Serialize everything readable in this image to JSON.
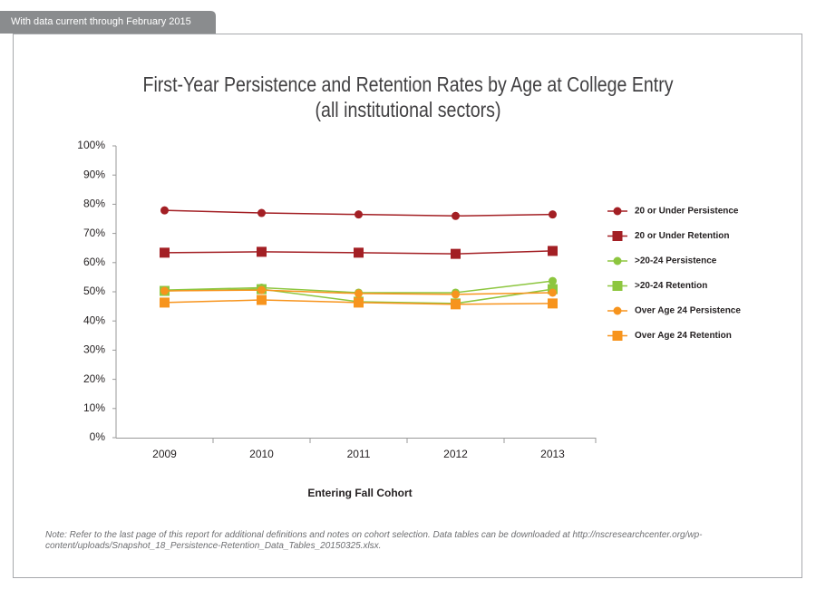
{
  "header": {
    "tab": "With data current through February 2015"
  },
  "chart_data": {
    "type": "line",
    "title": "First-Year Persistence and Retention Rates by Age at College Entry",
    "subtitle": "(all institutional sectors)",
    "x_label": "Entering Fall Cohort",
    "categories": [
      "2009",
      "2010",
      "2011",
      "2012",
      "2013"
    ],
    "series": [
      {
        "name": "20 or Under Persistence",
        "color": "#a31f24",
        "marker": "circle",
        "values": [
          77.9,
          77.0,
          76.5,
          76.0,
          76.5
        ]
      },
      {
        "name": "20 or Under Retention",
        "color": "#a31f24",
        "marker": "square",
        "values": [
          63.4,
          63.7,
          63.4,
          63.0,
          64.0
        ]
      },
      {
        "name": ">20-24 Persistence",
        "color": "#8dc63f",
        "marker": "circle",
        "values": [
          50.6,
          51.4,
          49.7,
          49.7,
          53.7
        ]
      },
      {
        "name": ">20-24 Retention",
        "color": "#8dc63f",
        "marker": "square",
        "values": [
          50.3,
          50.9,
          46.6,
          46.0,
          50.9
        ]
      },
      {
        "name": "Over Age 24 Persistence",
        "color": "#f7941d",
        "marker": "circle",
        "values": [
          50.3,
          50.6,
          49.4,
          49.1,
          49.7
        ]
      },
      {
        "name": "Over Age 24 Retention",
        "color": "#f7941d",
        "marker": "square",
        "values": [
          46.3,
          47.2,
          46.3,
          45.7,
          46.0
        ]
      }
    ],
    "ylim": [
      0,
      100
    ],
    "yticks": [
      {
        "value": 0,
        "label": "0%"
      },
      {
        "value": 10,
        "label": "10%"
      },
      {
        "value": 20,
        "label": "20%"
      },
      {
        "value": 30,
        "label": "30%"
      },
      {
        "value": 40,
        "label": "40%"
      },
      {
        "value": 50,
        "label": "50%"
      },
      {
        "value": 60,
        "label": "60%"
      },
      {
        "value": 70,
        "label": "70%"
      },
      {
        "value": 80,
        "label": "80%"
      },
      {
        "value": 90,
        "label": "90%"
      },
      {
        "value": 100,
        "label": "100%"
      }
    ],
    "grid": false,
    "legend": "right"
  },
  "note": "Note: Refer to the last page of this report for additional definitions and notes on cohort selection. Data tables can be downloaded at http://nscresearchcenter.org/wp-content/uploads/Snapshot_18_Persistence-Retention_Data_Tables_20150325.xlsx."
}
